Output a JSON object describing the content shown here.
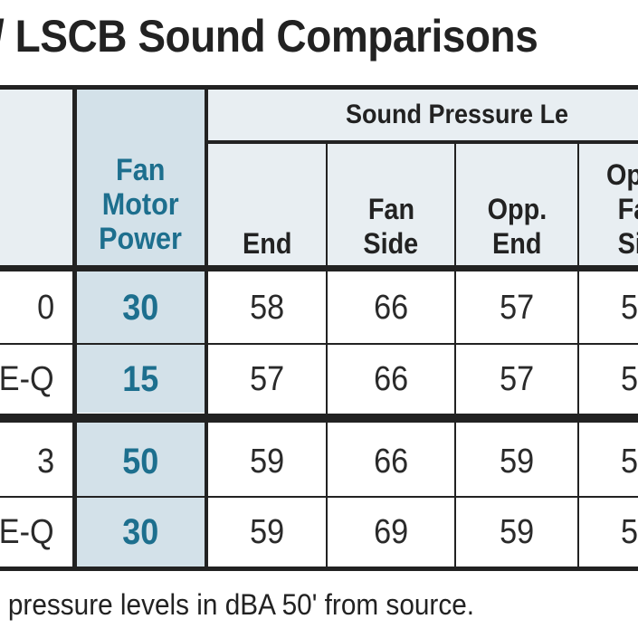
{
  "title": "/ LSCB Sound Comparisons",
  "table": {
    "group_header": "Sound Pressure Le",
    "col_power": [
      "Fan",
      "Motor",
      "Power"
    ],
    "col_end": "End",
    "col_fan_side": [
      "Fan",
      "Side"
    ],
    "col_opp_end": [
      "Opp.",
      "End"
    ],
    "col_opp_fan_side": [
      "Op",
      "Fa",
      "Si"
    ],
    "rows": [
      {
        "label": "0",
        "power": "30",
        "end": "58",
        "fan_side": "66",
        "opp_end": "57",
        "opp_fan_side": "5"
      },
      {
        "label": "E-Q",
        "power": "15",
        "end": "57",
        "fan_side": "66",
        "opp_end": "57",
        "opp_fan_side": "5"
      },
      {
        "label": "3",
        "power": "50",
        "end": "59",
        "fan_side": "66",
        "opp_end": "59",
        "opp_fan_side": "5"
      },
      {
        "label": "E-Q",
        "power": "30",
        "end": "59",
        "fan_side": "69",
        "opp_end": "59",
        "opp_fan_side": "5"
      }
    ]
  },
  "footnote": "l pressure levels in dBA 50' from source.",
  "colors": {
    "highlight_text": "#1d6f8e",
    "highlight_bg": "#d3e1e9",
    "header_bg": "#e8eef2"
  }
}
